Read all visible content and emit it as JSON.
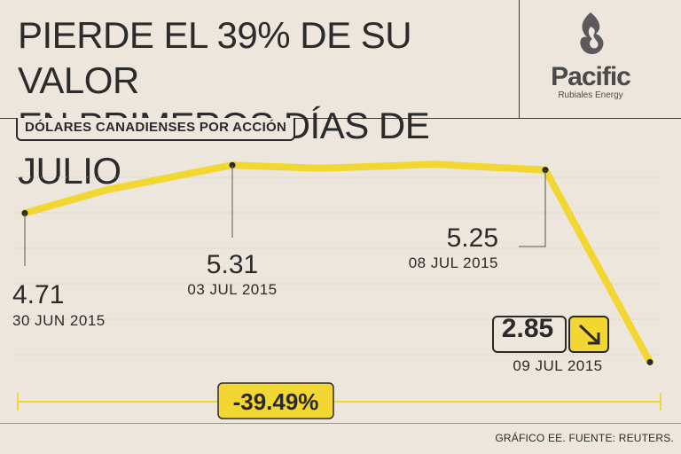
{
  "header": {
    "title_line1": "PIERDE EL 39% DE SU VALOR",
    "title_line2": "EN PRIMEROS DÍAS DE JULIO",
    "logo_text": "Pacific",
    "logo_subtext": "Rubiales Energy"
  },
  "unit_label": "DÓLARES CANADIENSES POR ACCIÓN",
  "source": "GRÁFICO EE. FUENTE: REUTERS.",
  "colors": {
    "line": "#f2d632",
    "background": "#ece6dd",
    "text": "#2a2a2a"
  },
  "chart_data": {
    "type": "line",
    "title": "",
    "xlabel": "",
    "ylabel": "",
    "ylim": [
      2.5,
      5.6
    ],
    "grid": "horizontal-dotted",
    "series": [
      {
        "values": [
          4.71,
          5.0,
          5.31,
          5.27,
          5.3,
          5.32,
          5.25,
          2.85
        ],
        "x": [
          "30 JUN 2015",
          "",
          "03 JUL 2015",
          "",
          "",
          "",
          "08 JUL 2015",
          "09 JUL 2015"
        ]
      }
    ],
    "labeled_points": [
      {
        "index": 0,
        "value": "4.71",
        "date": "30 JUN 2015"
      },
      {
        "index": 2,
        "value": "5.31",
        "date": "03 JUL 2015"
      },
      {
        "index": 6,
        "value": "5.25",
        "date": "08 JUL 2015"
      },
      {
        "index": 7,
        "value": "2.85",
        "date": "09 JUL 2015",
        "icon": "arrow-down-right-icon"
      }
    ],
    "change_label": "-39.49%"
  }
}
